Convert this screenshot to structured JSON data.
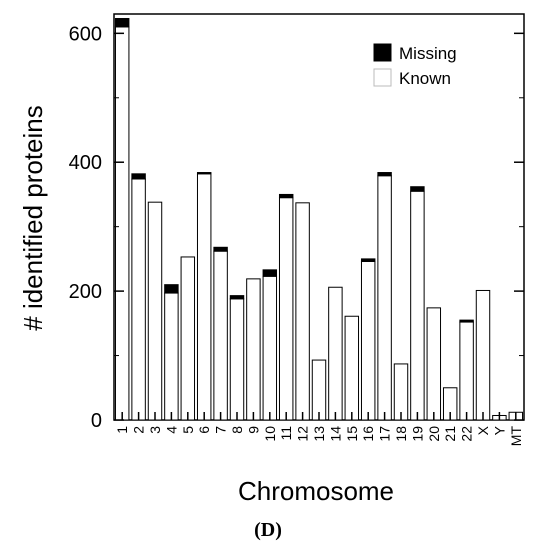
{
  "chart_data": {
    "type": "bar",
    "stacked": true,
    "xlabel": "Chromosome",
    "ylabel": "# identified proteins",
    "ylim": [
      0,
      630
    ],
    "yticks": [
      0,
      200,
      400,
      600
    ],
    "categories": [
      "1",
      "2",
      "3",
      "4",
      "5",
      "6",
      "7",
      "8",
      "9",
      "10",
      "11",
      "12",
      "13",
      "14",
      "15",
      "16",
      "17",
      "18",
      "19",
      "20",
      "21",
      "22",
      "X",
      "Y",
      "MT"
    ],
    "series": [
      {
        "name": "Known",
        "color": "#ffffff",
        "values": [
          610,
          374,
          338,
          197,
          253,
          382,
          262,
          188,
          219,
          223,
          345,
          337,
          93,
          206,
          161,
          246,
          379,
          87,
          355,
          174,
          50,
          152,
          201,
          7,
          12
        ]
      },
      {
        "name": "Missing",
        "color": "#000000",
        "values": [
          13,
          8,
          0,
          13,
          0,
          2,
          6,
          5,
          0,
          10,
          5,
          0,
          0,
          0,
          0,
          4,
          5,
          0,
          7,
          0,
          0,
          3,
          0,
          0,
          0
        ]
      }
    ],
    "legend_position": "top-right",
    "grid": false
  },
  "panel_label": "(D)"
}
